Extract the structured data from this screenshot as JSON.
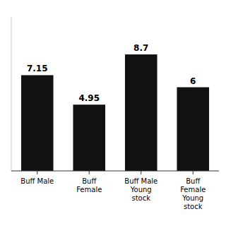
{
  "chart_data": {
    "type": "bar",
    "categories": [
      "Buff Male",
      "Buff\nFemale",
      "Buff Male\nYoung\nstock",
      "Buff\nFemale\nYoung\nstock"
    ],
    "values": [
      7.15,
      4.95,
      8.7,
      6.25
    ],
    "value_labels": [
      "7.15",
      "4.95",
      "8.7",
      "6"
    ],
    "data_labels": true,
    "color": "#111111",
    "ylim": [
      0,
      11.5
    ],
    "grid": false,
    "tick_labels": "x"
  }
}
